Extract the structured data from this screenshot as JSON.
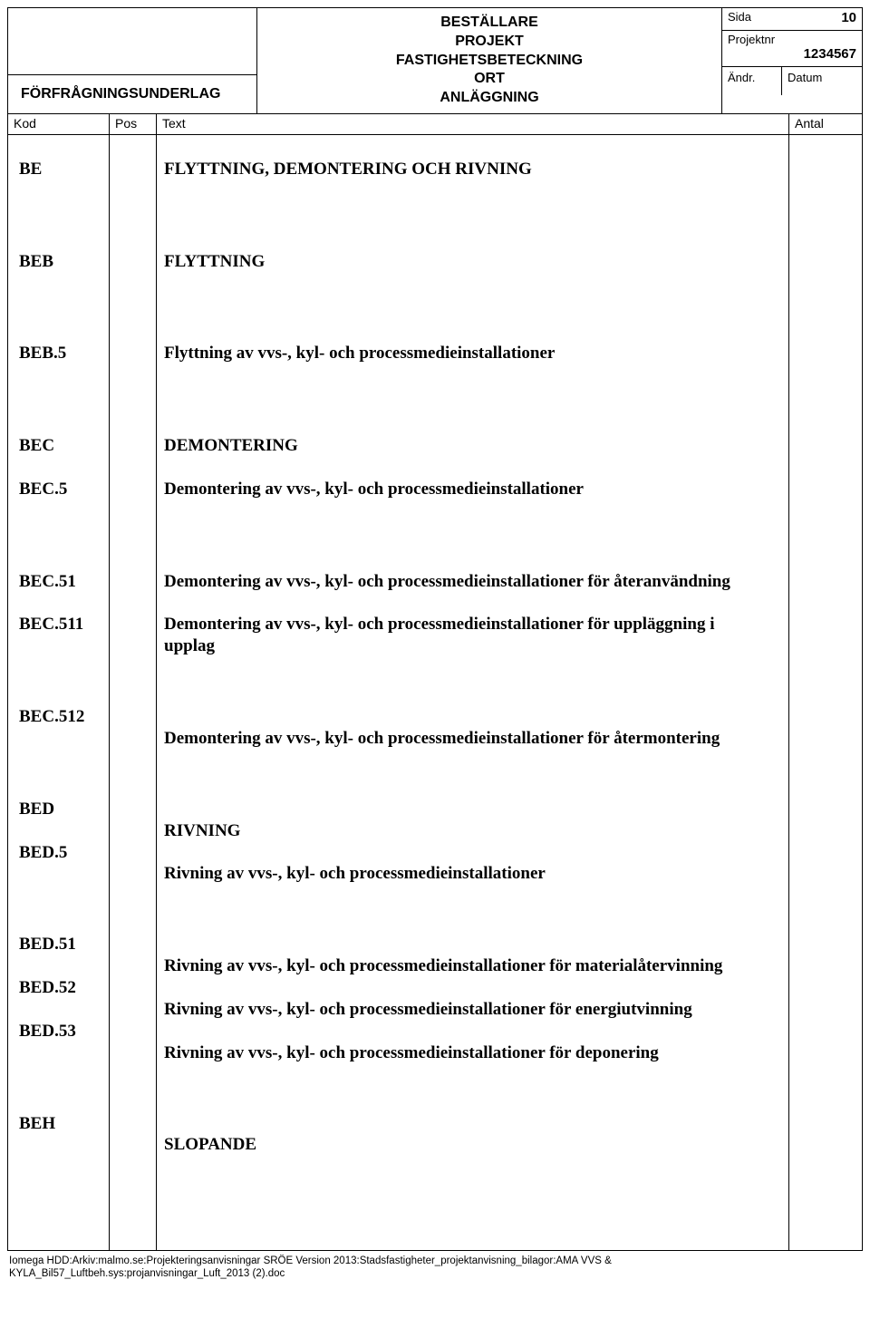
{
  "header": {
    "left_bottom": "FÖRFRÅGNINGSUNDERLAG",
    "center_lines": [
      "BESTÄLLARE",
      "PROJEKT",
      "FASTIGHETSBETECKNING",
      "ORT",
      "ANLÄGGNING"
    ],
    "right": {
      "sida_label": "Sida",
      "sida_val": "10",
      "projektnr_label": "Projektnr",
      "projektnr_val": "1234567",
      "andr_label": "Ändr.",
      "datum_label": "Datum"
    }
  },
  "columns": {
    "kod": "Kod",
    "pos": "Pos",
    "text": "Text",
    "antal": "Antal"
  },
  "rows": [
    {
      "kod": "BE",
      "text": "FLYTTNING, DEMONTERING OCH RIVNING",
      "gap": "big"
    },
    {
      "kod": "BEB",
      "text": "FLYTTNING",
      "gap": "big"
    },
    {
      "kod": "BEB.5",
      "text": "Flyttning av vvs-, kyl- och processmedieinstallationer",
      "gap": "big"
    },
    {
      "kod": "BEC",
      "text": "DEMONTERING",
      "gap": "pairtop"
    },
    {
      "kod": "BEC.5",
      "text": "Demontering av vvs-, kyl- och processmedieinstallationer",
      "gap": "big"
    },
    {
      "kod": "BEC.51",
      "text": "Demontering av vvs-, kyl- och processmedieinstallationer för återanvändning",
      "gap": "pairtop"
    },
    {
      "kod": "BEC.511",
      "text": "Demontering av vvs-, kyl- och processmedieinstallationer för uppläggning i upplag",
      "gap": "big"
    },
    {
      "kod": "BEC.512",
      "text": "Demontering av vvs-, kyl- och processmedieinstallationer för återmontering",
      "gap": "big"
    },
    {
      "kod": "BED",
      "text": "RIVNING",
      "gap": "pairtop"
    },
    {
      "kod": "BED.5",
      "text": "Rivning av vvs-, kyl- och processmedieinstallationer",
      "gap": "big"
    },
    {
      "kod": "BED.51",
      "text": "Rivning av vvs-, kyl- och processmedieinstallationer för materialåtervinning",
      "gap": "pairtop"
    },
    {
      "kod": "BED.52",
      "text": "Rivning av vvs-, kyl- och processmedieinstallationer för energiutvinning",
      "gap": "pairtop"
    },
    {
      "kod": "BED.53",
      "text": "Rivning av vvs-, kyl- och processmedieinstallationer för deponering",
      "gap": "big"
    },
    {
      "kod": "BEH",
      "text": "SLOPANDE",
      "gap": ""
    }
  ],
  "footer_lines": [
    "Iomega HDD:Arkiv:malmo.se:Projekteringsanvisningar SRÖE Version 2013:Stadsfastigheter_projektanvisning_bilagor:AMA VVS &",
    "KYLA_Bil57_Luftbeh.sys:projanvisningar_Luft_2013 (2).doc"
  ],
  "colors": {
    "border": "#000000",
    "background": "#ffffff",
    "text": "#000000"
  }
}
